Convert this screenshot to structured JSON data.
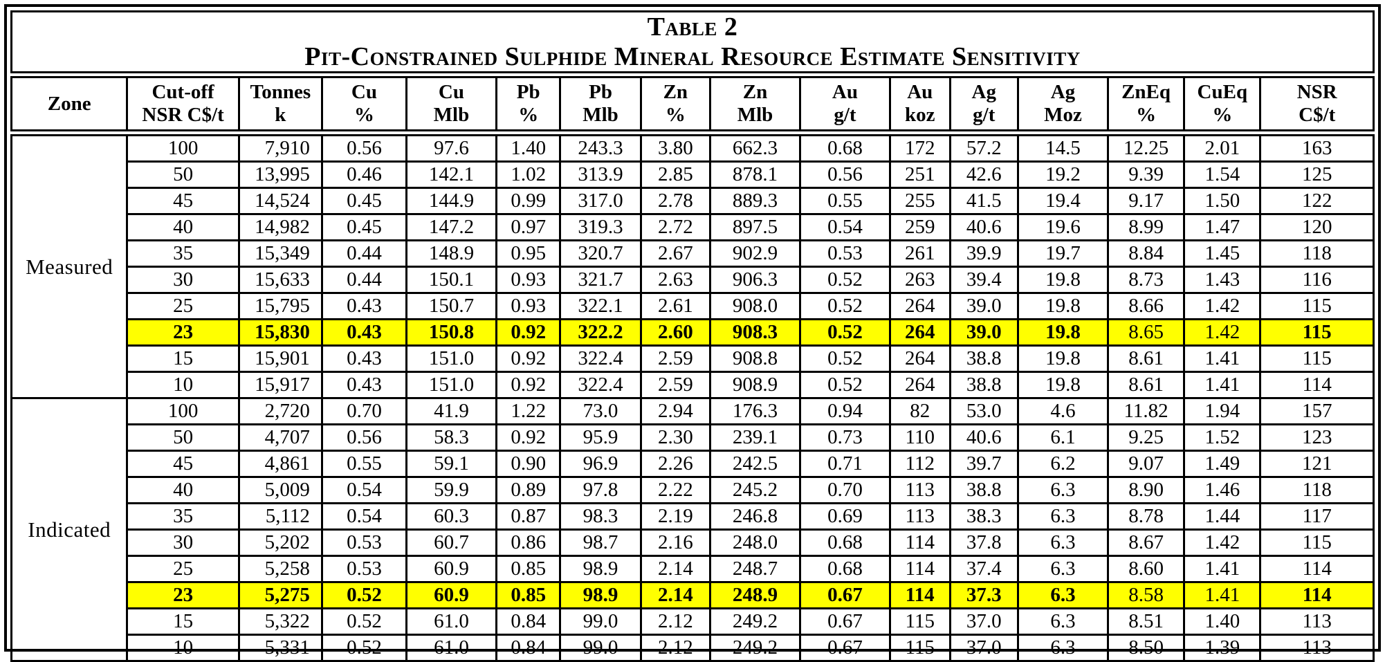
{
  "title": {
    "line1": "Table 2",
    "line2": "Pit-Constrained Sulphide Mineral Resource Estimate Sensitivity"
  },
  "colors": {
    "highlight_row": "#FFFF00",
    "border": "#000000",
    "text": "#000000",
    "background": "#FFFFFF"
  },
  "table": {
    "columns": [
      {
        "key": "zone",
        "line1": "Zone",
        "line2": ""
      },
      {
        "key": "cutoff",
        "line1": "Cut-off",
        "line2": "NSR C$/t"
      },
      {
        "key": "tonnes",
        "line1": "Tonnes",
        "line2": "k"
      },
      {
        "key": "cu-pct",
        "line1": "Cu",
        "line2": "%"
      },
      {
        "key": "cu-mlb",
        "line1": "Cu",
        "line2": "Mlb"
      },
      {
        "key": "pb-pct",
        "line1": "Pb",
        "line2": "%"
      },
      {
        "key": "pb-mlb",
        "line1": "Pb",
        "line2": "Mlb"
      },
      {
        "key": "zn-pct",
        "line1": "Zn",
        "line2": "%"
      },
      {
        "key": "zn-mlb",
        "line1": "Zn",
        "line2": "Mlb"
      },
      {
        "key": "au-gpt",
        "line1": "Au",
        "line2": "g/t"
      },
      {
        "key": "au-koz",
        "line1": "Au",
        "line2": "koz"
      },
      {
        "key": "ag-gpt",
        "line1": "Ag",
        "line2": "g/t"
      },
      {
        "key": "ag-moz",
        "line1": "Ag",
        "line2": "Moz"
      },
      {
        "key": "zneq-pct",
        "line1": "ZnEq",
        "line2": "%"
      },
      {
        "key": "cueq-pct",
        "line1": "CuEq",
        "line2": "%"
      },
      {
        "key": "nsr",
        "line1": "NSR",
        "line2": "C$/t"
      }
    ],
    "sections": [
      {
        "zone": "Measured",
        "rows": [
          {
            "highlight": false,
            "values": [
              "100",
              "7,910",
              "0.56",
              "97.6",
              "1.40",
              "243.3",
              "3.80",
              "662.3",
              "0.68",
              "172",
              "57.2",
              "14.5",
              "12.25",
              "2.01",
              "163"
            ]
          },
          {
            "highlight": false,
            "values": [
              "50",
              "13,995",
              "0.46",
              "142.1",
              "1.02",
              "313.9",
              "2.85",
              "878.1",
              "0.56",
              "251",
              "42.6",
              "19.2",
              "9.39",
              "1.54",
              "125"
            ]
          },
          {
            "highlight": false,
            "values": [
              "45",
              "14,524",
              "0.45",
              "144.9",
              "0.99",
              "317.0",
              "2.78",
              "889.3",
              "0.55",
              "255",
              "41.5",
              "19.4",
              "9.17",
              "1.50",
              "122"
            ]
          },
          {
            "highlight": false,
            "values": [
              "40",
              "14,982",
              "0.45",
              "147.2",
              "0.97",
              "319.3",
              "2.72",
              "897.5",
              "0.54",
              "259",
              "40.6",
              "19.6",
              "8.99",
              "1.47",
              "120"
            ]
          },
          {
            "highlight": false,
            "values": [
              "35",
              "15,349",
              "0.44",
              "148.9",
              "0.95",
              "320.7",
              "2.67",
              "902.9",
              "0.53",
              "261",
              "39.9",
              "19.7",
              "8.84",
              "1.45",
              "118"
            ]
          },
          {
            "highlight": false,
            "values": [
              "30",
              "15,633",
              "0.44",
              "150.1",
              "0.93",
              "321.7",
              "2.63",
              "906.3",
              "0.52",
              "263",
              "39.4",
              "19.8",
              "8.73",
              "1.43",
              "116"
            ]
          },
          {
            "highlight": false,
            "values": [
              "25",
              "15,795",
              "0.43",
              "150.7",
              "0.93",
              "322.1",
              "2.61",
              "908.0",
              "0.52",
              "264",
              "39.0",
              "19.8",
              "8.66",
              "1.42",
              "115"
            ]
          },
          {
            "highlight": true,
            "values": [
              "23",
              "15,830",
              "0.43",
              "150.8",
              "0.92",
              "322.2",
              "2.60",
              "908.3",
              "0.52",
              "264",
              "39.0",
              "19.8",
              "8.65",
              "1.42",
              "115"
            ]
          },
          {
            "highlight": false,
            "values": [
              "15",
              "15,901",
              "0.43",
              "151.0",
              "0.92",
              "322.4",
              "2.59",
              "908.8",
              "0.52",
              "264",
              "38.8",
              "19.8",
              "8.61",
              "1.41",
              "115"
            ]
          },
          {
            "highlight": false,
            "values": [
              "10",
              "15,917",
              "0.43",
              "151.0",
              "0.92",
              "322.4",
              "2.59",
              "908.9",
              "0.52",
              "264",
              "38.8",
              "19.8",
              "8.61",
              "1.41",
              "114"
            ]
          }
        ]
      },
      {
        "zone": "Indicated",
        "rows": [
          {
            "highlight": false,
            "values": [
              "100",
              "2,720",
              "0.70",
              "41.9",
              "1.22",
              "73.0",
              "2.94",
              "176.3",
              "0.94",
              "82",
              "53.0",
              "4.6",
              "11.82",
              "1.94",
              "157"
            ]
          },
          {
            "highlight": false,
            "values": [
              "50",
              "4,707",
              "0.56",
              "58.3",
              "0.92",
              "95.9",
              "2.30",
              "239.1",
              "0.73",
              "110",
              "40.6",
              "6.1",
              "9.25",
              "1.52",
              "123"
            ]
          },
          {
            "highlight": false,
            "values": [
              "45",
              "4,861",
              "0.55",
              "59.1",
              "0.90",
              "96.9",
              "2.26",
              "242.5",
              "0.71",
              "112",
              "39.7",
              "6.2",
              "9.07",
              "1.49",
              "121"
            ]
          },
          {
            "highlight": false,
            "values": [
              "40",
              "5,009",
              "0.54",
              "59.9",
              "0.89",
              "97.8",
              "2.22",
              "245.2",
              "0.70",
              "113",
              "38.8",
              "6.3",
              "8.90",
              "1.46",
              "118"
            ]
          },
          {
            "highlight": false,
            "values": [
              "35",
              "5,112",
              "0.54",
              "60.3",
              "0.87",
              "98.3",
              "2.19",
              "246.8",
              "0.69",
              "113",
              "38.3",
              "6.3",
              "8.78",
              "1.44",
              "117"
            ]
          },
          {
            "highlight": false,
            "values": [
              "30",
              "5,202",
              "0.53",
              "60.7",
              "0.86",
              "98.7",
              "2.16",
              "248.0",
              "0.68",
              "114",
              "37.8",
              "6.3",
              "8.67",
              "1.42",
              "115"
            ]
          },
          {
            "highlight": false,
            "values": [
              "25",
              "5,258",
              "0.53",
              "60.9",
              "0.85",
              "98.9",
              "2.14",
              "248.7",
              "0.68",
              "114",
              "37.4",
              "6.3",
              "8.60",
              "1.41",
              "114"
            ]
          },
          {
            "highlight": true,
            "values": [
              "23",
              "5,275",
              "0.52",
              "60.9",
              "0.85",
              "98.9",
              "2.14",
              "248.9",
              "0.67",
              "114",
              "37.3",
              "6.3",
              "8.58",
              "1.41",
              "114"
            ]
          },
          {
            "highlight": false,
            "values": [
              "15",
              "5,322",
              "0.52",
              "61.0",
              "0.84",
              "99.0",
              "2.12",
              "249.2",
              "0.67",
              "115",
              "37.0",
              "6.3",
              "8.51",
              "1.40",
              "113"
            ]
          },
          {
            "highlight": false,
            "values": [
              "10",
              "5,331",
              "0.52",
              "61.0",
              "0.84",
              "99.0",
              "2.12",
              "249.2",
              "0.67",
              "115",
              "37.0",
              "6.3",
              "8.50",
              "1.39",
              "113"
            ]
          }
        ]
      }
    ]
  }
}
